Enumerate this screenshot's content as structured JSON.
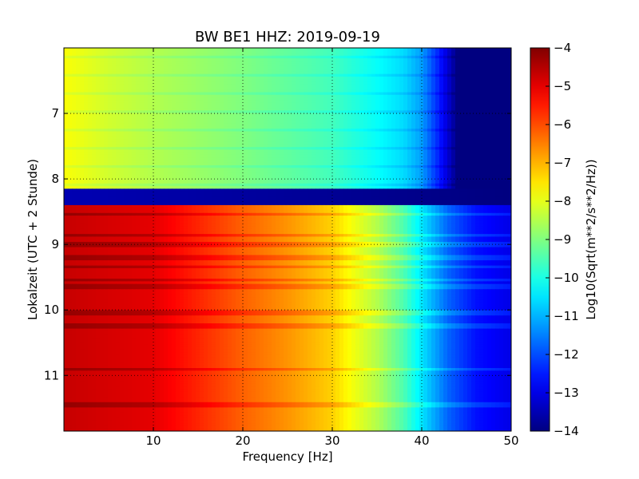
{
  "chart_data": {
    "type": "heatmap",
    "title": "BW BE1 HHZ: 2019-09-19",
    "xlabel": "Frequency [Hz]",
    "ylabel": "Lokalzeit (UTC + 2 Stunde)",
    "xlim": [
      0,
      50
    ],
    "ylim": [
      6,
      11.85
    ],
    "y_inverted": true,
    "x_ticks": [
      10,
      20,
      30,
      40,
      50
    ],
    "y_ticks": [
      7,
      8,
      9,
      10,
      11
    ],
    "grid": true,
    "grid_style": "dotted",
    "colorbar": {
      "label": "Log10(Sqrt(m**2/s**2/Hz))",
      "range": [
        -14,
        -4
      ],
      "ticks": [
        -14,
        -13,
        -12,
        -11,
        -10,
        -9,
        -8,
        -7,
        -6,
        -5,
        -4
      ],
      "colormap": "jet"
    },
    "segments": [
      {
        "time_range": [
          6.0,
          8.15
        ],
        "description": "quiet",
        "profile": [
          {
            "freq": 0,
            "value": -7.8
          },
          {
            "freq": 5,
            "value": -8.2
          },
          {
            "freq": 10,
            "value": -8.5
          },
          {
            "freq": 20,
            "value": -9.0
          },
          {
            "freq": 30,
            "value": -9.6
          },
          {
            "freq": 35,
            "value": -10.2
          },
          {
            "freq": 38,
            "value": -10.6
          },
          {
            "freq": 40,
            "value": -11.2
          },
          {
            "freq": 42,
            "value": -12.5
          },
          {
            "freq": 44,
            "value": -14.0
          },
          {
            "freq": 50,
            "value": -14.0
          }
        ]
      },
      {
        "time_range": [
          8.15,
          8.4
        ],
        "description": "data gap",
        "profile": [
          {
            "freq": 0,
            "value": -13.5
          },
          {
            "freq": 50,
            "value": -14.0
          }
        ]
      },
      {
        "time_range": [
          8.4,
          11.85
        ],
        "description": "loud",
        "profile": [
          {
            "freq": 0,
            "value": -4.7
          },
          {
            "freq": 10,
            "value": -5.0
          },
          {
            "freq": 15,
            "value": -5.6
          },
          {
            "freq": 20,
            "value": -6.2
          },
          {
            "freq": 25,
            "value": -6.7
          },
          {
            "freq": 30,
            "value": -7.3
          },
          {
            "freq": 32,
            "value": -7.8
          },
          {
            "freq": 35,
            "value": -8.5
          },
          {
            "freq": 38,
            "value": -9.5
          },
          {
            "freq": 40,
            "value": -10.5
          },
          {
            "freq": 43,
            "value": -11.8
          },
          {
            "freq": 46,
            "value": -12.6
          },
          {
            "freq": 50,
            "value": -13.0
          }
        ]
      }
    ],
    "bright_stripes_times": [
      8.55,
      8.85,
      9.0,
      9.2,
      9.35,
      9.55,
      9.65,
      10.05,
      10.25,
      10.9,
      11.45
    ]
  }
}
